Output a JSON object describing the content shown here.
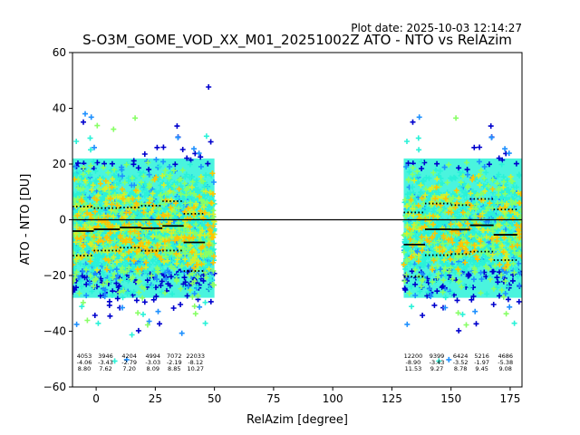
{
  "plot_date": "Plot date: 2025-10-03 12:14:27",
  "chart_data": {
    "type": "scatter",
    "title": "S-O3M_GOME_VOD_XX_M01_20251002Z ATO - NTO vs RelAzim",
    "xlabel": "RelAzim [degree]",
    "ylabel": "ATO - NTO [DU]",
    "xlim": [
      -10,
      180
    ],
    "ylim": [
      -60,
      60
    ],
    "xticks": [
      0,
      25,
      50,
      75,
      100,
      125,
      150,
      175
    ],
    "yticks": [
      -60,
      -40,
      -20,
      0,
      20,
      40,
      60
    ],
    "zero_line": 0,
    "colors": [
      "#0000cd",
      "#1e90ff",
      "#2af2d8",
      "#88ff66",
      "#d8f028",
      "#ffc400"
    ],
    "clusters": [
      {
        "name": "left",
        "x_range": [
          -10,
          50
        ],
        "y_core": [
          -28,
          22
        ]
      },
      {
        "name": "right",
        "x_range": [
          130,
          180
        ],
        "y_core": [
          -28,
          22
        ]
      }
    ],
    "bins": [
      {
        "x_range": [
          -10,
          -1
        ],
        "mean": -4.06,
        "std": 8.8,
        "count": "4053",
        "mean_label": "-4.06",
        "std_label": "8.80",
        "label_x": -5
      },
      {
        "x_range": [
          -1,
          10
        ],
        "mean": -3.43,
        "std": 7.62,
        "count": "3946",
        "mean_label": "-3.43",
        "std_label": "7.62",
        "label_x": 4
      },
      {
        "x_range": [
          10,
          19
        ],
        "mean": -2.79,
        "std": 7.2,
        "count": "4204",
        "mean_label": "-2.79",
        "std_label": "7.20",
        "label_x": 14
      },
      {
        "x_range": [
          19,
          28
        ],
        "mean": -3.03,
        "std": 8.09,
        "count": "4994",
        "mean_label": "-3.03",
        "std_label": "8.09",
        "label_x": 24
      },
      {
        "x_range": [
          28,
          37
        ],
        "mean": -2.19,
        "std": 8.85,
        "count": "7072",
        "mean_label": "-2.19",
        "std_label": "8.85",
        "label_x": 33
      },
      {
        "x_range": [
          37,
          46
        ],
        "mean": -8.12,
        "std": 10.27,
        "count": "22033",
        "mean_label": "-8.12",
        "std_label": "10.27",
        "label_x": 42
      },
      {
        "x_range": [
          130,
          139
        ],
        "mean": -8.9,
        "std": 11.53,
        "count": "12200",
        "mean_label": "-8.90",
        "std_label": "11.53",
        "label_x": 134
      },
      {
        "x_range": [
          139,
          150
        ],
        "mean": -3.43,
        "std": 9.27,
        "count": "9399",
        "mean_label": "-3.43",
        "std_label": "9.27",
        "label_x": 144
      },
      {
        "x_range": [
          150,
          158
        ],
        "mean": -3.52,
        "std": 8.78,
        "count": "6424",
        "mean_label": "-3.52",
        "std_label": "8.78",
        "label_x": 154
      },
      {
        "x_range": [
          158,
          168
        ],
        "mean": -1.97,
        "std": 9.45,
        "count": "5216",
        "mean_label": "-1.97",
        "std_label": "9.45",
        "label_x": 163
      },
      {
        "x_range": [
          168,
          178
        ],
        "mean": -5.38,
        "std": 9.08,
        "count": "4686",
        "mean_label": "-5.38",
        "std_label": "9.08",
        "label_x": 173
      }
    ]
  }
}
